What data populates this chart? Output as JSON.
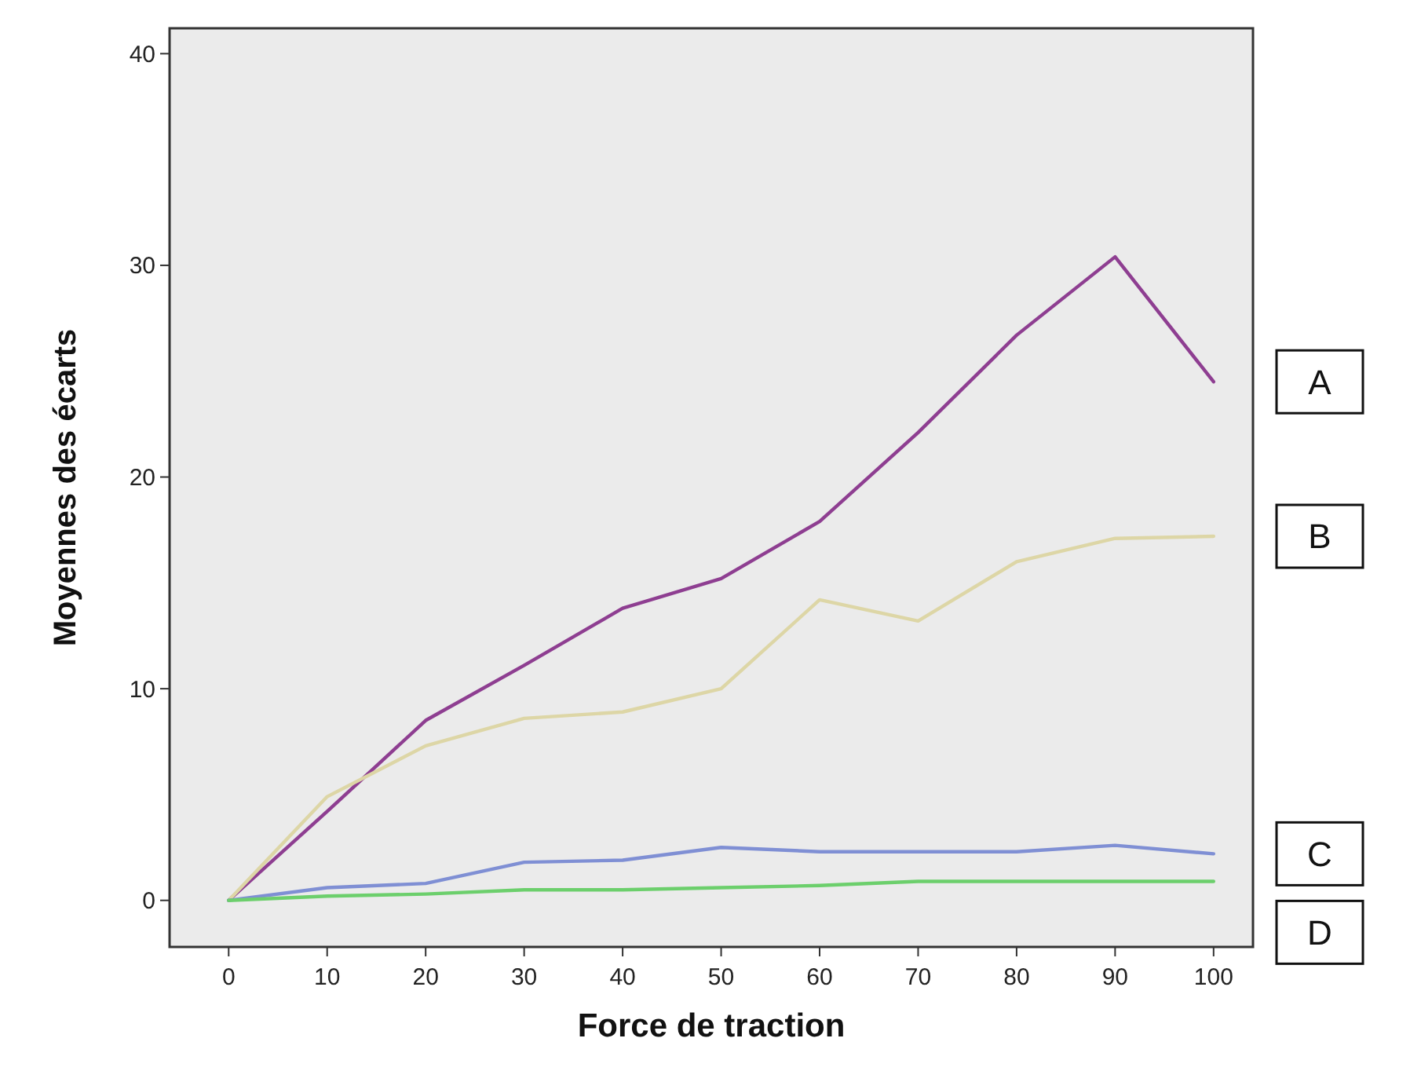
{
  "chart_data": {
    "type": "line",
    "xlabel": "Force de traction",
    "ylabel": "Moyennes des écarts",
    "x": [
      0,
      10,
      20,
      30,
      40,
      50,
      60,
      70,
      80,
      90,
      100
    ],
    "xlim": [
      -6,
      104
    ],
    "xticks": [
      0,
      10,
      20,
      30,
      40,
      50,
      60,
      70,
      80,
      90,
      100
    ],
    "ylim": [
      -2.2,
      41.2
    ],
    "yticks": [
      0,
      10,
      20,
      30,
      40
    ],
    "grid": false,
    "marker": "none",
    "line_style": "solid",
    "series": [
      {
        "name": "A",
        "color": "#8e3e91",
        "values": [
          0,
          4.2,
          8.5,
          11.1,
          13.8,
          15.2,
          17.9,
          22.1,
          26.7,
          30.4,
          24.5
        ]
      },
      {
        "name": "B",
        "color": "#ddd6a6",
        "values": [
          0,
          4.9,
          7.3,
          8.6,
          8.9,
          10.0,
          14.2,
          13.2,
          16.0,
          17.1,
          17.2
        ]
      },
      {
        "name": "C",
        "color": "#7f8fd4",
        "values": [
          0,
          0.6,
          0.8,
          1.8,
          1.9,
          2.5,
          2.3,
          2.3,
          2.3,
          2.6,
          2.2
        ]
      },
      {
        "name": "D",
        "color": "#6ccf6c",
        "values": [
          0,
          0.2,
          0.3,
          0.5,
          0.5,
          0.6,
          0.7,
          0.9,
          0.9,
          0.9,
          0.9
        ]
      }
    ]
  }
}
